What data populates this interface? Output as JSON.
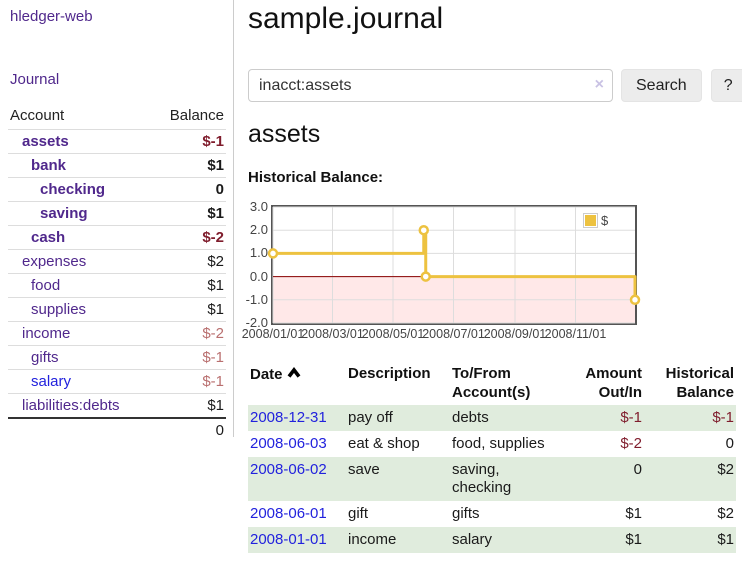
{
  "app": {
    "title": "hledger-web"
  },
  "colors": {
    "accent_purple": "#50288c",
    "link_blue": "#2222dd",
    "negative_dark": "#7f1c2c",
    "negative_muted": "#b96f6f",
    "row_stripe_green": "#e0ecdd",
    "chart_line": "#edc240",
    "chart_zero_line": "#8b0000",
    "chart_negative_fill": "rgba(255,0,0,0.09)",
    "chart_grid": "#dddddd",
    "chart_border": "#545454"
  },
  "sidebar": {
    "journal_label": "Journal",
    "accounts_table": {
      "headers": {
        "account": "Account",
        "balance": "Balance"
      },
      "rows": [
        {
          "name": "assets",
          "balance": "$-1",
          "indent": 1,
          "bold": true,
          "balance_class": "neg",
          "link_class": "purple"
        },
        {
          "name": "bank",
          "balance": "$1",
          "indent": 2,
          "bold": true,
          "balance_class": "",
          "link_class": "purple"
        },
        {
          "name": "checking",
          "balance": "0",
          "indent": 3,
          "bold": true,
          "balance_class": "",
          "link_class": "purple"
        },
        {
          "name": "saving",
          "balance": "$1",
          "indent": 3,
          "bold": true,
          "balance_class": "",
          "link_class": "purple"
        },
        {
          "name": "cash",
          "balance": "$-2",
          "indent": 2,
          "bold": true,
          "balance_class": "neg",
          "link_class": "purple"
        },
        {
          "name": "expenses",
          "balance": "$2",
          "indent": 1,
          "bold": false,
          "balance_class": "",
          "link_class": "purple"
        },
        {
          "name": "food",
          "balance": "$1",
          "indent": 2,
          "bold": false,
          "balance_class": "",
          "link_class": "purple"
        },
        {
          "name": "supplies",
          "balance": "$1",
          "indent": 2,
          "bold": false,
          "balance_class": "",
          "link_class": "purple"
        },
        {
          "name": "income",
          "balance": "$-2",
          "indent": 1,
          "bold": false,
          "balance_class": "mneg",
          "link_class": "purple"
        },
        {
          "name": "gifts",
          "balance": "$-1",
          "indent": 2,
          "bold": false,
          "balance_class": "mneg",
          "link_class": "purple"
        },
        {
          "name": "salary",
          "balance": "$-1",
          "indent": 2,
          "bold": false,
          "balance_class": "mneg",
          "link_class": "blue"
        },
        {
          "name": "liabilities:debts",
          "balance": "$1",
          "indent": 1,
          "bold": false,
          "balance_class": "",
          "link_class": "purple"
        }
      ],
      "total": "0"
    }
  },
  "header": {
    "title": "sample.journal"
  },
  "search": {
    "value": "inacct:assets",
    "clear_icon": "×",
    "button_label": "Search",
    "help_label": "?"
  },
  "main": {
    "account_heading": "assets",
    "chart_label": "Historical Balance:"
  },
  "chart_data": {
    "type": "line",
    "style": "step-after",
    "title": "Historical Balance of assets",
    "legend": [
      {
        "name": "$",
        "color": "#edc240"
      }
    ],
    "legend_position": "top-right",
    "grid": true,
    "x_range": [
      "2008-01-01",
      "2008-12-31"
    ],
    "ylim": [
      -2,
      3
    ],
    "yticks": [
      3.0,
      2.0,
      1.0,
      0.0,
      -1.0,
      -2.0
    ],
    "ytick_labels": [
      "3.0",
      "2.0",
      "1.0",
      "0.0",
      "-1.0",
      "-2.0"
    ],
    "xticks": [
      "2008-01-01",
      "2008-03-01",
      "2008-05-01",
      "2008-07-01",
      "2008-09-01",
      "2008-11-01"
    ],
    "xtick_labels": [
      "2008/01/01",
      "2008/03/01",
      "2008/05/01",
      "2008/07/01",
      "2008/09/01",
      "2008/11/01"
    ],
    "series": [
      {
        "name": "$",
        "points": [
          {
            "x": "2008-01-01",
            "y": 1
          },
          {
            "x": "2008-06-01",
            "y": 2
          },
          {
            "x": "2008-06-03",
            "y": 0
          },
          {
            "x": "2008-12-31",
            "y": -1
          }
        ]
      }
    ],
    "annotations": {
      "zero_line": true,
      "negative_region_shaded": true
    }
  },
  "transactions": {
    "headers": [
      {
        "lines": [
          "Date"
        ],
        "align": "left",
        "sorted": "asc"
      },
      {
        "lines": [
          "Description"
        ],
        "align": "left"
      },
      {
        "lines": [
          "To/From",
          "Account(s)"
        ],
        "align": "left"
      },
      {
        "lines": [
          "Amount",
          "Out/In"
        ],
        "align": "right"
      },
      {
        "lines": [
          "Historical",
          "Balance"
        ],
        "align": "right"
      }
    ],
    "rows": [
      {
        "date": "2008-12-31",
        "description": "pay off",
        "accounts": "debts",
        "amount": "$-1",
        "amount_class": "neg",
        "balance": "$-1",
        "balance_class": "neg"
      },
      {
        "date": "2008-06-03",
        "description": "eat & shop",
        "accounts": "food, supplies",
        "amount": "$-2",
        "amount_class": "neg",
        "balance": "0",
        "balance_class": ""
      },
      {
        "date": "2008-06-02",
        "description": "save",
        "accounts": "saving, checking",
        "amount": "0",
        "amount_class": "",
        "balance": "$2",
        "balance_class": ""
      },
      {
        "date": "2008-06-01",
        "description": "gift",
        "accounts": "gifts",
        "amount": "$1",
        "amount_class": "",
        "balance": "$2",
        "balance_class": ""
      },
      {
        "date": "2008-01-01",
        "description": "income",
        "accounts": "salary",
        "amount": "$1",
        "amount_class": "",
        "balance": "$1",
        "balance_class": ""
      }
    ]
  }
}
